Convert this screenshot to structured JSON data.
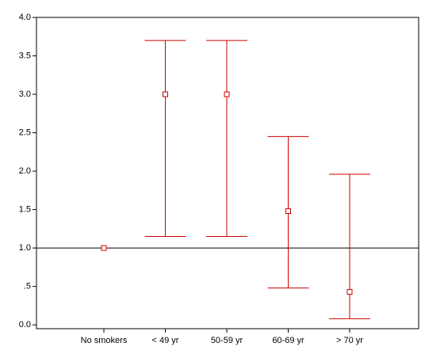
{
  "chart_data": {
    "type": "errorbar",
    "categories": [
      "No smokers",
      "< 49 yr",
      "50-59 yr",
      "60-69 yr",
      "> 70 yr"
    ],
    "values": [
      1.0,
      3.0,
      3.0,
      1.48,
      0.43
    ],
    "lower": [
      null,
      1.15,
      1.15,
      0.48,
      0.08
    ],
    "upper": [
      null,
      3.7,
      3.7,
      2.45,
      1.96
    ],
    "color": "#cc0000",
    "reference_line": 1.0,
    "ylim": [
      -0.05,
      4.0
    ],
    "yticks": [
      {
        "value": 0,
        "label": "0.0"
      },
      {
        "value": 0.5,
        "label": ".5"
      },
      {
        "value": 1,
        "label": "1.0"
      },
      1.5,
      {
        "value": 2,
        "label": "2.0"
      },
      2.5,
      {
        "value": 3,
        "label": "3.0"
      },
      3.5,
      {
        "value": 4,
        "label": "4.0"
      }
    ]
  }
}
